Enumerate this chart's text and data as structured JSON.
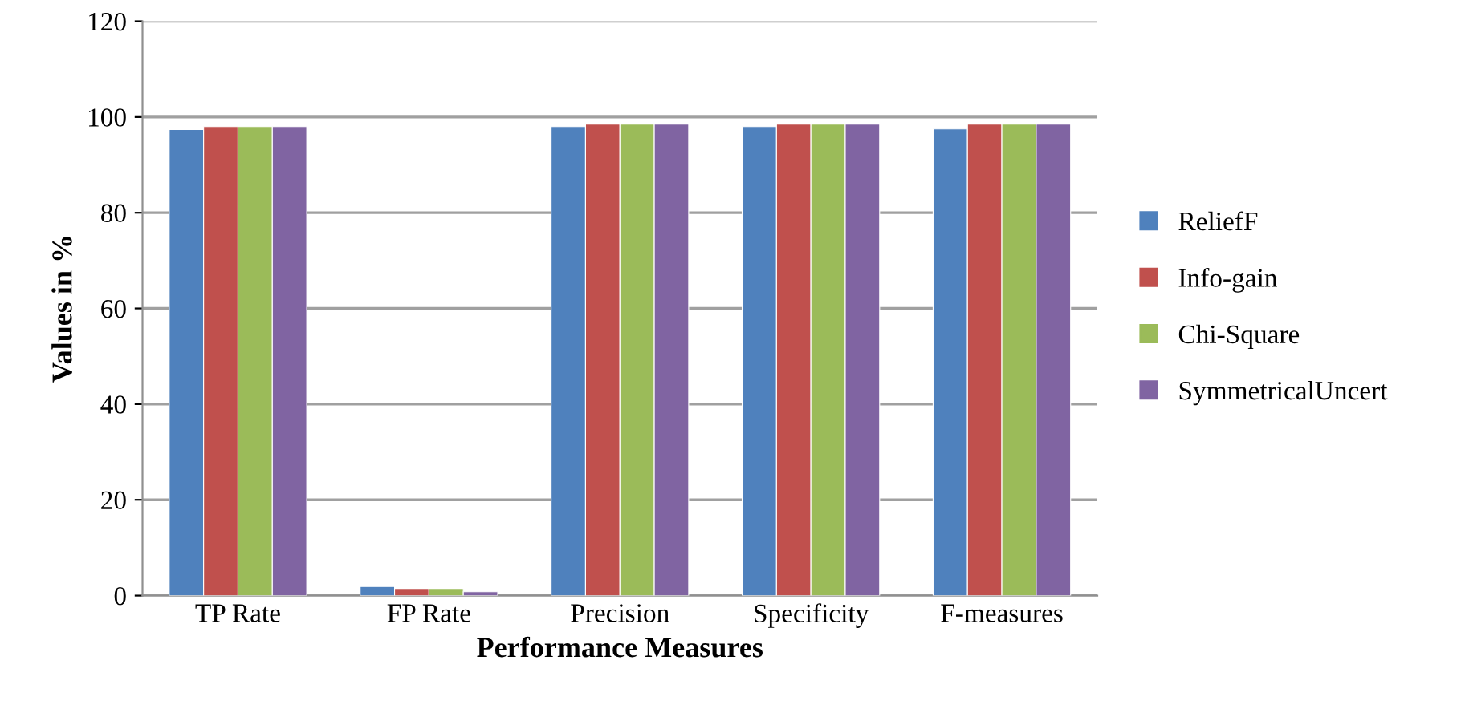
{
  "chart_data": {
    "type": "bar",
    "xlabel": "Performance Measures",
    "ylabel": "Values in %",
    "categories": [
      "TP Rate",
      "FP Rate",
      "Precision",
      "Specificity",
      "F-measures"
    ],
    "series": [
      {
        "name": "ReliefF",
        "color": "#4f81bd",
        "values": [
          97.4,
          1.9,
          98,
          98,
          97.5
        ]
      },
      {
        "name": "Info-gain",
        "color": "#c0504d",
        "values": [
          98,
          1.3,
          98.5,
          98.5,
          98.5
        ]
      },
      {
        "name": "Chi-Square",
        "color": "#9bbb59",
        "values": [
          98,
          1.3,
          98.5,
          98.5,
          98.5
        ]
      },
      {
        "name": "SymmetricalUncert",
        "color": "#8064a2",
        "values": [
          98,
          0.8,
          98.5,
          98.5,
          98.5
        ]
      }
    ],
    "ylim": [
      0,
      120
    ],
    "yticks": [
      0,
      20,
      40,
      60,
      80,
      100,
      120
    ],
    "grid": "y",
    "legend": "right"
  }
}
